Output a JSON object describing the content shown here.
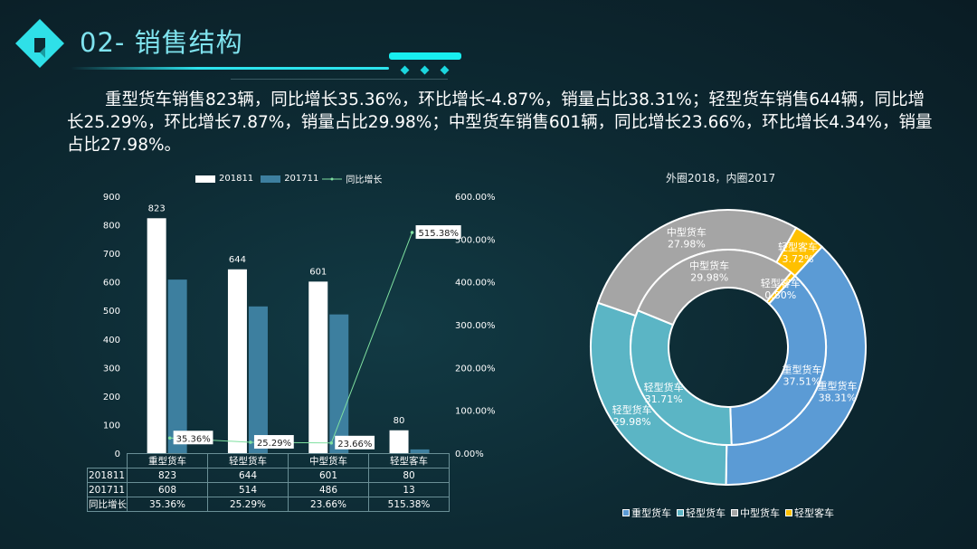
{
  "header": {
    "title": "02- 销售结构",
    "logo": "diamond-logo-icon"
  },
  "summary": "重型货车销售823辆，同比增长35.36%，环比增长-4.87%，销量占比38.31%；轻型货车销售644辆，同比增长25.29%，环比增长7.87%，销量占比29.98%；中型货车销售601辆，同比增长23.66%，环比增长4.34%，销量占比27.98%。",
  "chart_data": [
    {
      "type": "bar",
      "categories": [
        "重型货车",
        "轻型货车",
        "中型货车",
        "轻型客车"
      ],
      "series": [
        {
          "name": "201811",
          "values": [
            823,
            644,
            601,
            80
          ],
          "color": "#ffffff",
          "axis": "left"
        },
        {
          "name": "201711",
          "values": [
            608,
            514,
            486,
            13
          ],
          "color": "#3d7f9f",
          "axis": "left"
        },
        {
          "name": "同比增长",
          "type": "line",
          "values": [
            35.36,
            25.29,
            23.66,
            515.38
          ],
          "labels": [
            "35.36%",
            "25.29%",
            "23.66%",
            "515.38%"
          ],
          "color": "#7fe0a0",
          "axis": "right"
        }
      ],
      "ylim": [
        0,
        900
      ],
      "yticks": [
        "0",
        "100",
        "200",
        "300",
        "400",
        "500",
        "600",
        "700",
        "800",
        "900"
      ],
      "y2lim": [
        0,
        600
      ],
      "y2ticks": [
        "0.00%",
        "100.00%",
        "200.00%",
        "300.00%",
        "400.00%",
        "500.00%",
        "600.00%"
      ],
      "legend": "top",
      "table": {
        "rows": [
          {
            "label": "201811",
            "cells": [
              "823",
              "644",
              "601",
              "80"
            ]
          },
          {
            "label": "201711",
            "cells": [
              "608",
              "514",
              "486",
              "13"
            ]
          },
          {
            "label": "同比增长",
            "cells": [
              "35.36%",
              "25.29%",
              "23.66%",
              "515.38%"
            ]
          }
        ]
      }
    },
    {
      "type": "pie",
      "title": "外圈2018，内圈2017",
      "categories": [
        "重型货车",
        "轻型货车",
        "中型货车",
        "轻型客车"
      ],
      "colors": [
        "#5b9bd5",
        "#5bb5c5",
        "#a5a5a5",
        "#ffc000"
      ],
      "series": [
        {
          "name": "2018",
          "ring": "outer",
          "values": [
            38.31,
            29.98,
            27.98,
            3.72
          ],
          "labels": [
            "38.31%",
            "29.98%",
            "27.98%",
            "3.72%"
          ]
        },
        {
          "name": "2017",
          "ring": "inner",
          "values": [
            37.51,
            31.71,
            29.98,
            0.8
          ],
          "labels": [
            "37.51%",
            "31.71%",
            "29.98%",
            "0.80%"
          ]
        }
      ],
      "legend": "bottom"
    }
  ]
}
